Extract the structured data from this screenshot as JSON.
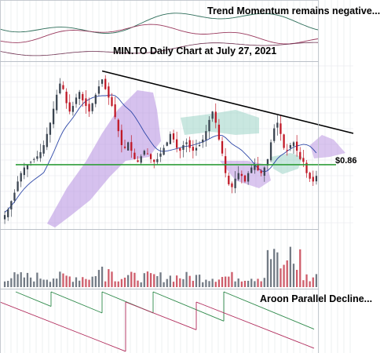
{
  "annotations": {
    "top_note": "Trend Momentum remains negative...",
    "chart_title": "MIN.TO Daily Chart at July 27, 2021",
    "support_label": "$0.86",
    "aroon_note": "Aroon Parallel Decline..."
  },
  "colors": {
    "up": "#3a4450",
    "down": "#c01826",
    "support": "#2f9e3a",
    "trendline": "#000000",
    "cloud_bear": "#b58ee0",
    "cloud_bull": "#9dd3c6",
    "sma": "#2e48a8",
    "aroon_up": "#2e8a4a",
    "aroon_down": "#b02a5a"
  },
  "chart_data": {
    "type": "candlestick",
    "price_series": [
      0.5,
      0.54,
      0.6,
      0.66,
      0.74,
      0.8,
      0.84,
      0.86,
      0.88,
      0.9,
      0.92,
      0.95,
      1.0,
      1.08,
      1.16,
      1.26,
      1.36,
      1.44,
      1.4,
      1.3,
      1.24,
      1.28,
      1.34,
      1.38,
      1.32,
      1.28,
      1.24,
      1.3,
      1.36,
      1.42,
      1.47,
      1.4,
      1.34,
      1.28,
      1.2,
      1.1,
      1.0,
      0.98,
      1.02,
      0.96,
      0.9,
      0.88,
      0.92,
      0.96,
      0.94,
      0.9,
      0.88,
      0.9,
      0.94,
      0.98,
      1.02,
      1.08,
      1.04,
      0.98,
      0.96,
      1.0,
      1.02,
      0.98,
      0.96,
      0.98,
      1.0,
      1.04,
      1.1,
      1.18,
      1.24,
      1.16,
      1.04,
      0.94,
      0.8,
      0.72,
      0.7,
      0.76,
      0.8,
      0.78,
      0.74,
      0.8,
      0.84,
      0.86,
      0.82,
      0.8,
      0.84,
      0.9,
      1.02,
      1.12,
      1.16,
      1.08,
      0.98,
      0.96,
      1.0,
      1.02,
      0.96,
      0.9,
      0.88,
      0.8,
      0.76,
      0.74,
      0.78
    ],
    "support_level": 0.86
  }
}
